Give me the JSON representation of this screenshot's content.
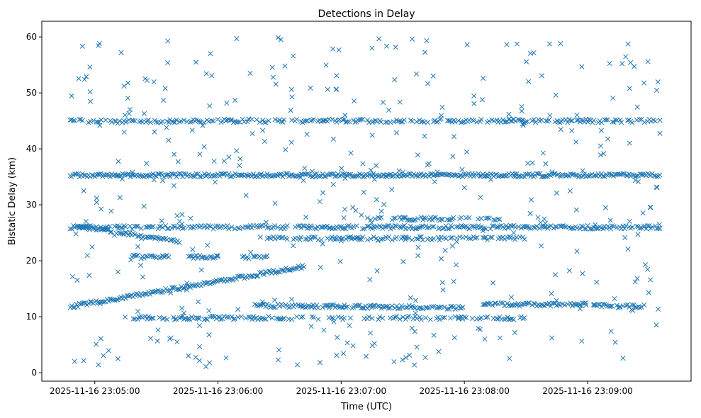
{
  "chart_data": {
    "type": "scatter",
    "title": "Detections in Delay",
    "xlabel": "Time (UTC)",
    "ylabel": "Bistatic Delay (km)",
    "marker": "x",
    "series_color": "#1f77b4",
    "ylim": [
      -1.5,
      62.8
    ],
    "yticks": [
      0,
      10,
      20,
      30,
      40,
      50,
      60
    ],
    "xlim_minutes": [
      -0.43,
      4.84
    ],
    "x_origin_label": "2025-11-16 23:05:00",
    "xticks": [
      {
        "value": 0,
        "label": "2025-11-16 23:05:00"
      },
      {
        "value": 1,
        "label": "2025-11-16 23:06:00"
      },
      {
        "value": 2,
        "label": "2025-11-16 23:07:00"
      },
      {
        "value": 3,
        "label": "2025-11-16 23:08:00"
      },
      {
        "value": 4,
        "label": "2025-11-16 23:09:00"
      }
    ],
    "x_units": "minutes since 23:05:00 UTC",
    "time_span_minutes": [
      -0.2,
      4.6
    ],
    "tracks": [
      {
        "name": "constant 45 km",
        "segments": [
          [
            -0.2,
            4.6,
            45,
            45
          ]
        ],
        "density": 0.7
      },
      {
        "name": "constant 35.3 km",
        "segments": [
          [
            -0.2,
            4.6,
            35.3,
            35.3
          ]
        ],
        "density": 1.0
      },
      {
        "name": "track ~26 km",
        "segments": [
          [
            -0.2,
            4.6,
            26,
            26
          ]
        ],
        "density": 0.8
      },
      {
        "name": "descending 26 to 24 km",
        "segments": [
          [
            -0.15,
            0.7,
            26.2,
            23.5
          ]
        ],
        "density": 0.9
      },
      {
        "name": "track ~24 km",
        "segments": [
          [
            1.4,
            3.5,
            24,
            24
          ]
        ],
        "density": 0.6
      },
      {
        "name": "track ~27.5 km",
        "segments": [
          [
            2.2,
            3.3,
            27.5,
            27.5
          ]
        ],
        "density": 0.6
      },
      {
        "name": "track ~20.7 km",
        "segments": [
          [
            0.3,
            0.6,
            20.7,
            20.7
          ],
          [
            0.75,
            1.0,
            20.7,
            20.7
          ],
          [
            1.2,
            1.4,
            20.7,
            20.7
          ]
        ],
        "density": 0.8
      },
      {
        "name": "rising 11.8 to 19 km",
        "segments": [
          [
            -0.2,
            1.7,
            11.8,
            19
          ]
        ],
        "density": 1.0
      },
      {
        "name": "track ~12 km",
        "segments": [
          [
            1.3,
            3.0,
            12,
            11.6
          ],
          [
            3.15,
            4.0,
            12.2,
            12.2
          ],
          [
            4.05,
            4.45,
            12,
            11.8
          ]
        ],
        "density": 0.9
      },
      {
        "name": "track ~9.8 km",
        "segments": [
          [
            0.3,
            3.5,
            9.8,
            9.8
          ]
        ],
        "density": 0.6
      }
    ],
    "noise_points": 420,
    "noise_y_range": [
      1,
      60
    ]
  }
}
